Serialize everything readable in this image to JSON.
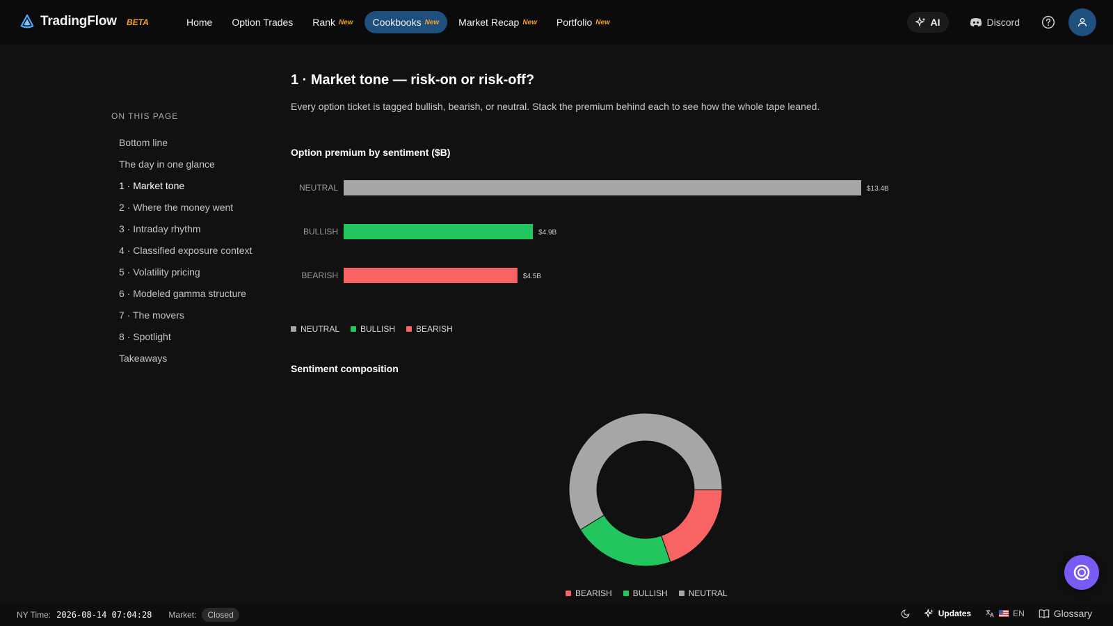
{
  "brand": {
    "name": "TradingFlow",
    "beta": "BETA"
  },
  "nav": {
    "items": [
      {
        "label": "Home",
        "badge": ""
      },
      {
        "label": "Option Trades",
        "badge": ""
      },
      {
        "label": "Rank",
        "badge": "New"
      },
      {
        "label": "Cookbooks",
        "badge": "New"
      },
      {
        "label": "Market Recap",
        "badge": "New"
      },
      {
        "label": "Portfolio",
        "badge": "New"
      }
    ],
    "active": "Cookbooks"
  },
  "top_right": {
    "ai_label": "AI",
    "discord_label": "Discord"
  },
  "toc": {
    "title": "ON THIS PAGE",
    "items": [
      "Bottom line",
      "The day in one glance",
      "1 · Market tone",
      "2 · Where the money went",
      "3 · Intraday rhythm",
      "4 · Classified exposure context",
      "5 · Volatility pricing",
      "6 · Modeled gamma structure",
      "7 · The movers",
      "8 · Spotlight",
      "Takeaways"
    ],
    "active_index": 2
  },
  "section": {
    "title": "1 · Market tone — risk-on or risk-off?",
    "description": "Every option ticket is tagged bullish, bearish, or neutral. Stack the premium behind each to see how the whole tape leaned."
  },
  "colors": {
    "neutral": "#a6a6a6",
    "bullish": "#22c55e",
    "bearish": "#f86464",
    "accent": "#1f4f7d"
  },
  "chart_data": [
    {
      "type": "bar",
      "orientation": "horizontal",
      "title": "Option premium by sentiment ($B)",
      "categories": [
        "NEUTRAL",
        "BULLISH",
        "BEARISH"
      ],
      "values": [
        13.4,
        4.9,
        4.5
      ],
      "data_labels": [
        "$13.4B",
        "$4.9B",
        "$4.5B"
      ],
      "legend": [
        "NEUTRAL",
        "BULLISH",
        "BEARISH"
      ],
      "legend_position": "bottom-left",
      "grid": false
    },
    {
      "type": "pie",
      "donut": true,
      "title": "Sentiment composition",
      "categories": [
        "BEARISH",
        "BULLISH",
        "NEUTRAL"
      ],
      "values": [
        4.5,
        4.9,
        13.4
      ],
      "legend": [
        "BEARISH",
        "BULLISH",
        "NEUTRAL"
      ],
      "legend_position": "bottom"
    }
  ],
  "footer": {
    "ny_time_label": "NY Time:",
    "ny_time_value": "2026-08-14 07:04:28",
    "market_label": "Market:",
    "market_status": "Closed",
    "updates_label": "Updates",
    "language": "EN",
    "glossary_label": "Glossary"
  }
}
